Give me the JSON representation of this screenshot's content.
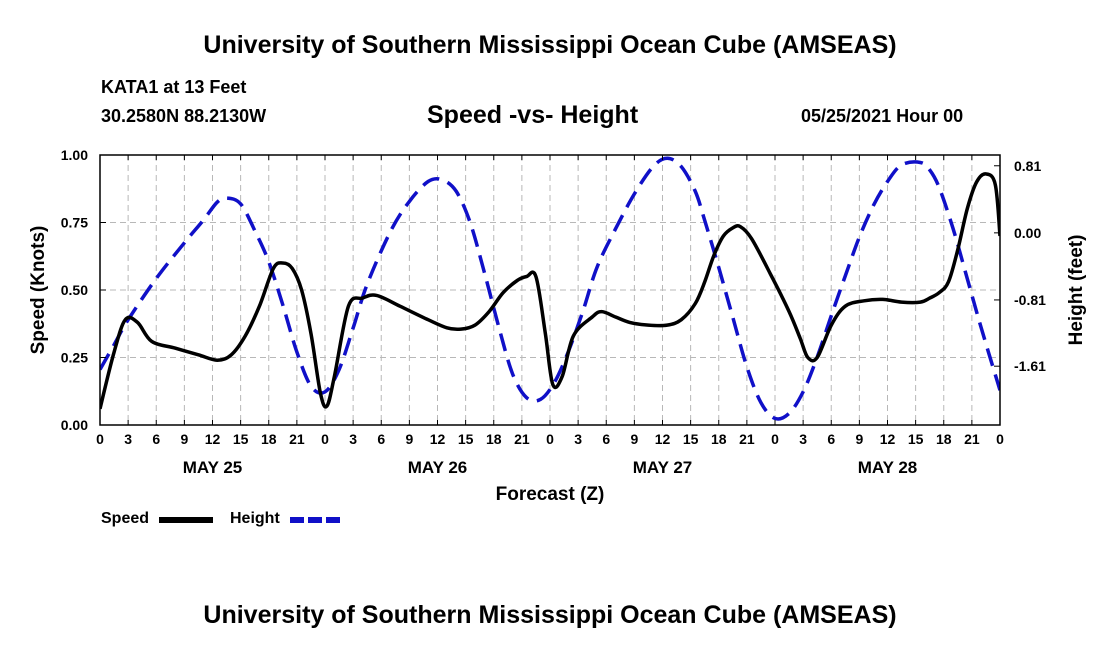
{
  "header": {
    "title": "University of Southern Mississippi Ocean Cube (AMSEAS)",
    "station": "KATA1 at 13 Feet",
    "coords": "30.2580N  88.2130W",
    "chart_title": "Speed -vs- Height",
    "date": "05/25/2021 Hour 00"
  },
  "footer": {
    "title": "University of Southern Mississippi Ocean Cube (AMSEAS)"
  },
  "legend": {
    "speed_label": "Speed",
    "height_label": "Height",
    "speed_color": "#000000",
    "height_color": "#1010c8"
  },
  "chart_data": {
    "type": "line",
    "title": "Speed -vs- Height",
    "xlabel": "Forecast (Z)",
    "ylabel": "Speed (Knots)",
    "y2label": "Height (feet)",
    "x_unit": "hours from 05/25/2021 00Z",
    "xlim": [
      0,
      96
    ],
    "ylim": [
      0,
      1.0
    ],
    "y2lim": [
      -2.32,
      0.94
    ],
    "y_ticks": [
      "0.00",
      "0.25",
      "0.50",
      "0.75",
      "1.00"
    ],
    "y_tick_values": [
      0,
      0.25,
      0.5,
      0.75,
      1.0
    ],
    "y2_ticks": [
      "0.81",
      "0.00",
      "-0.81",
      "-1.61"
    ],
    "y2_tick_values": [
      0.81,
      0.0,
      -0.81,
      -1.61
    ],
    "x_tick_labels": [
      "0",
      "3",
      "6",
      "9",
      "12",
      "15",
      "18",
      "21",
      "0",
      "3",
      "6",
      "9",
      "12",
      "15",
      "18",
      "21",
      "0",
      "3",
      "6",
      "9",
      "12",
      "15",
      "18",
      "21",
      "0",
      "3",
      "6",
      "9",
      "12",
      "15",
      "18",
      "21",
      "0"
    ],
    "day_labels": [
      {
        "label": "MAY 25",
        "hour": 12
      },
      {
        "label": "MAY 26",
        "hour": 36
      },
      {
        "label": "MAY 27",
        "hour": 60
      },
      {
        "label": "MAY 28",
        "hour": 84
      }
    ],
    "grid": true,
    "series": [
      {
        "name": "Speed",
        "axis": "left",
        "color": "#000000",
        "dash": "solid",
        "x": [
          0,
          1.5,
          2.7,
          4,
          5.5,
          8,
          10.5,
          12.5,
          14,
          15.5,
          17,
          18.5,
          19.5,
          20.5,
          21.5,
          22.5,
          23.5,
          24.2,
          25,
          26.5,
          28,
          29.5,
          32,
          35,
          37,
          38.5,
          40,
          41.5,
          43,
          44.5,
          45.5,
          46.5,
          47.5,
          48.3,
          49.3,
          50.5,
          52.5,
          53.5,
          55,
          56.5,
          58.5,
          60.5,
          62,
          63.5,
          64.5,
          65.5,
          66.5,
          67.5,
          68.3,
          69.5,
          71.5,
          73.5,
          74.7,
          75.5,
          76.5,
          78,
          79.5,
          81.5,
          83.5,
          85.5,
          87.5,
          88.5,
          89.5,
          90.5,
          91.5,
          92.5,
          93.5,
          94.5,
          95.5,
          96
        ],
        "values": [
          0.06,
          0.27,
          0.39,
          0.38,
          0.31,
          0.285,
          0.26,
          0.24,
          0.26,
          0.33,
          0.44,
          0.58,
          0.6,
          0.58,
          0.5,
          0.34,
          0.12,
          0.07,
          0.18,
          0.44,
          0.47,
          0.48,
          0.44,
          0.39,
          0.36,
          0.355,
          0.37,
          0.42,
          0.49,
          0.535,
          0.55,
          0.55,
          0.34,
          0.15,
          0.18,
          0.33,
          0.4,
          0.42,
          0.4,
          0.38,
          0.37,
          0.37,
          0.39,
          0.45,
          0.53,
          0.63,
          0.7,
          0.73,
          0.735,
          0.69,
          0.56,
          0.42,
          0.32,
          0.25,
          0.25,
          0.37,
          0.44,
          0.46,
          0.465,
          0.455,
          0.455,
          0.47,
          0.49,
          0.53,
          0.65,
          0.8,
          0.9,
          0.93,
          0.89,
          0.7
        ]
      },
      {
        "name": "Height",
        "axis": "right",
        "color": "#1010c8",
        "dash": "dashed",
        "x": [
          0,
          1.5,
          3,
          6,
          9,
          11,
          12.5,
          13.5,
          15,
          16.5,
          18,
          19.5,
          21,
          22.5,
          24,
          25.5,
          27,
          28.5,
          31,
          33,
          35,
          36.5,
          38,
          39.5,
          41,
          42.5,
          44,
          45.5,
          47,
          48.5,
          50,
          51.5,
          53,
          55,
          57,
          59,
          60.5,
          62,
          63.5,
          64.5,
          66,
          67.5,
          69,
          70.5,
          72,
          73.5,
          75,
          76.5,
          78,
          79.5,
          81,
          82.5,
          84,
          85.5,
          87.5,
          88.5,
          89.5,
          91,
          92.5,
          94,
          96
        ],
        "values": [
          -1.65,
          -1.35,
          -1.05,
          -0.55,
          -0.12,
          0.15,
          0.37,
          0.42,
          0.35,
          0.03,
          -0.35,
          -0.87,
          -1.44,
          -1.85,
          -1.92,
          -1.65,
          -1.15,
          -0.62,
          0.02,
          0.38,
          0.62,
          0.64,
          0.5,
          0.12,
          -0.48,
          -1.12,
          -1.7,
          -1.99,
          -2.01,
          -1.8,
          -1.42,
          -0.95,
          -0.42,
          0.05,
          0.47,
          0.8,
          0.9,
          0.8,
          0.5,
          0.15,
          -0.42,
          -1.02,
          -1.62,
          -2.05,
          -2.24,
          -2.18,
          -1.92,
          -1.5,
          -1.0,
          -0.52,
          -0.05,
          0.33,
          0.62,
          0.82,
          0.85,
          0.76,
          0.55,
          0.05,
          -0.55,
          -1.15,
          -1.9
        ]
      }
    ]
  }
}
